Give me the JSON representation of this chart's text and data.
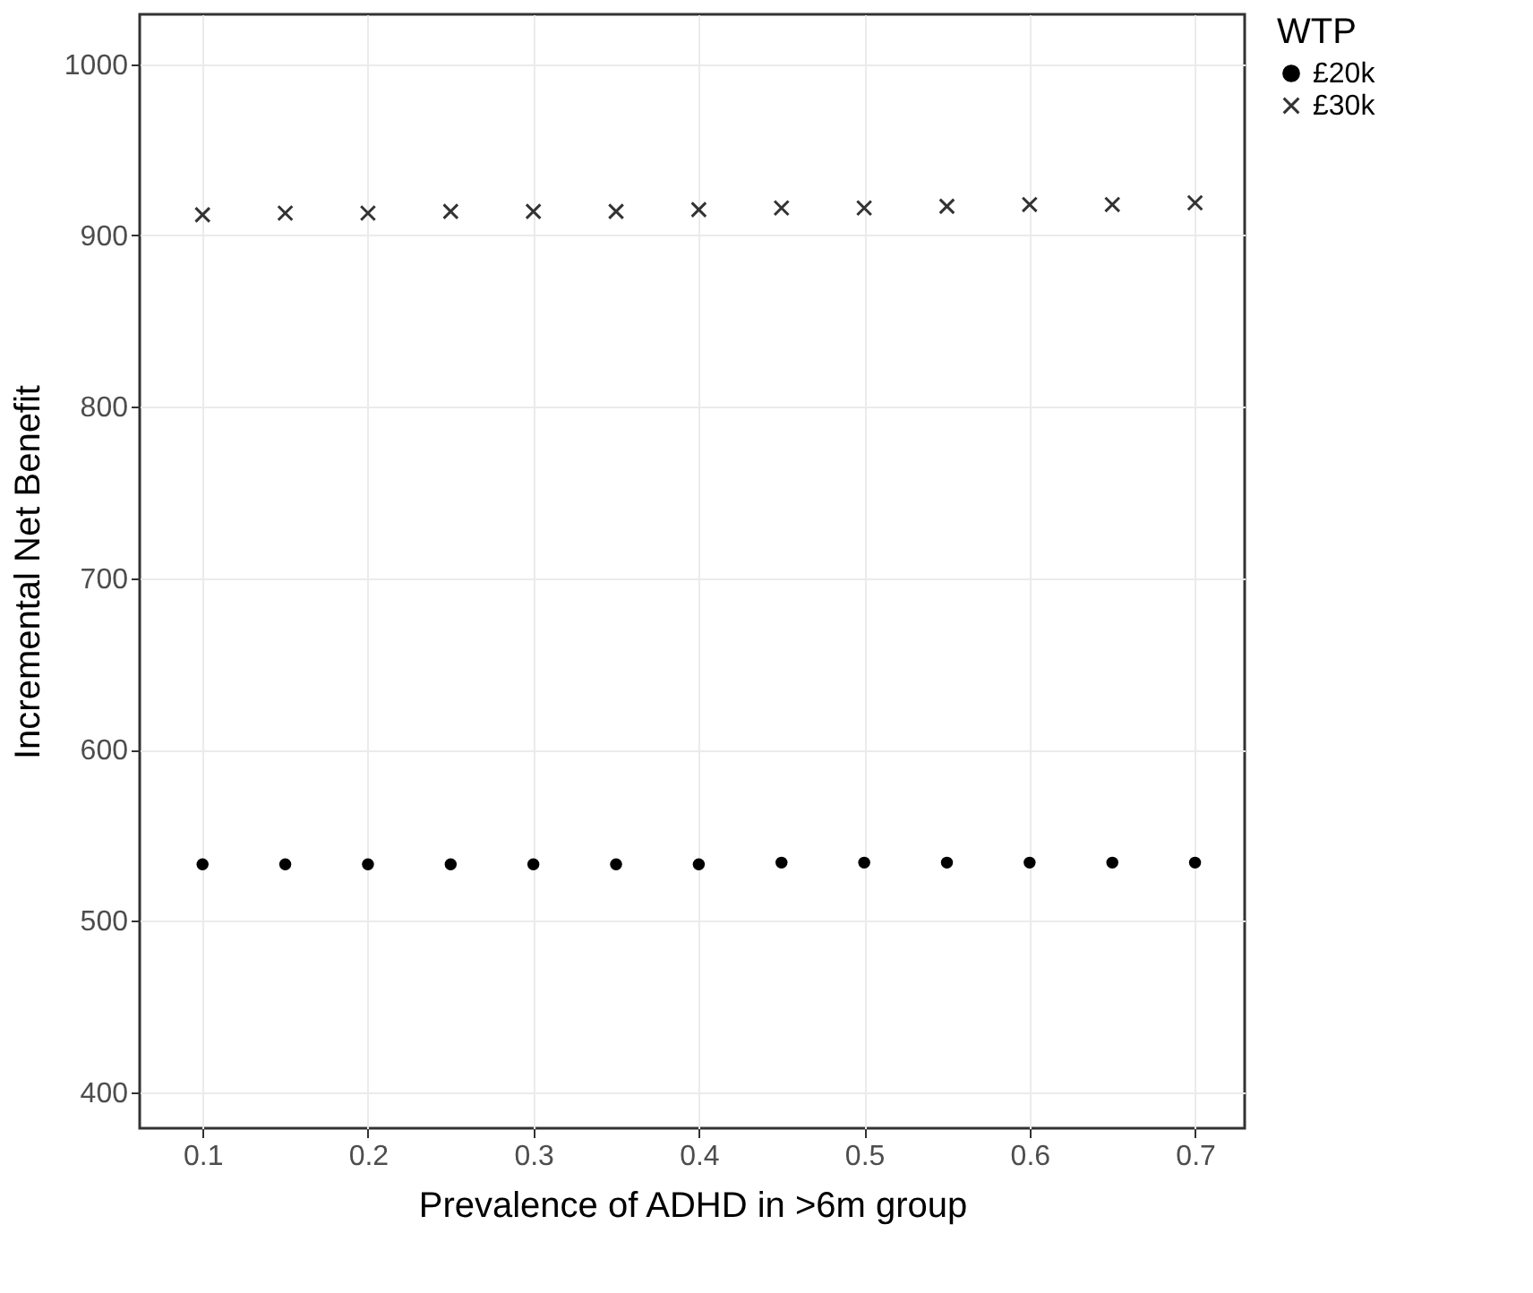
{
  "chart_data": {
    "type": "scatter",
    "xlabel": "Prevalence of ADHD in >6m group",
    "ylabel": "Incremental Net Benefit",
    "legend_title": "WTP",
    "legend": "right",
    "grid": true,
    "x": [
      0.1,
      0.15,
      0.2,
      0.25,
      0.3,
      0.35,
      0.4,
      0.45,
      0.5,
      0.55,
      0.6,
      0.65,
      0.7
    ],
    "series": [
      {
        "name": "£20k",
        "color": "#000000",
        "marker": "circle",
        "values": [
          533,
          533,
          533,
          533,
          533,
          533,
          533,
          534,
          534,
          534,
          534,
          534,
          534
        ]
      },
      {
        "name": "£30k",
        "color": "#333333",
        "marker": "cross",
        "values": [
          912,
          913,
          913,
          914,
          914,
          914,
          915,
          916,
          916,
          917,
          918,
          918,
          919
        ]
      }
    ],
    "xlim": [
      0.062,
      0.73
    ],
    "xticks": [
      0.1,
      0.2,
      0.3,
      0.4,
      0.5,
      0.6,
      0.7
    ],
    "ylim": [
      379,
      1029
    ],
    "yticks": [
      400,
      500,
      600,
      700,
      800,
      900,
      1000
    ]
  }
}
